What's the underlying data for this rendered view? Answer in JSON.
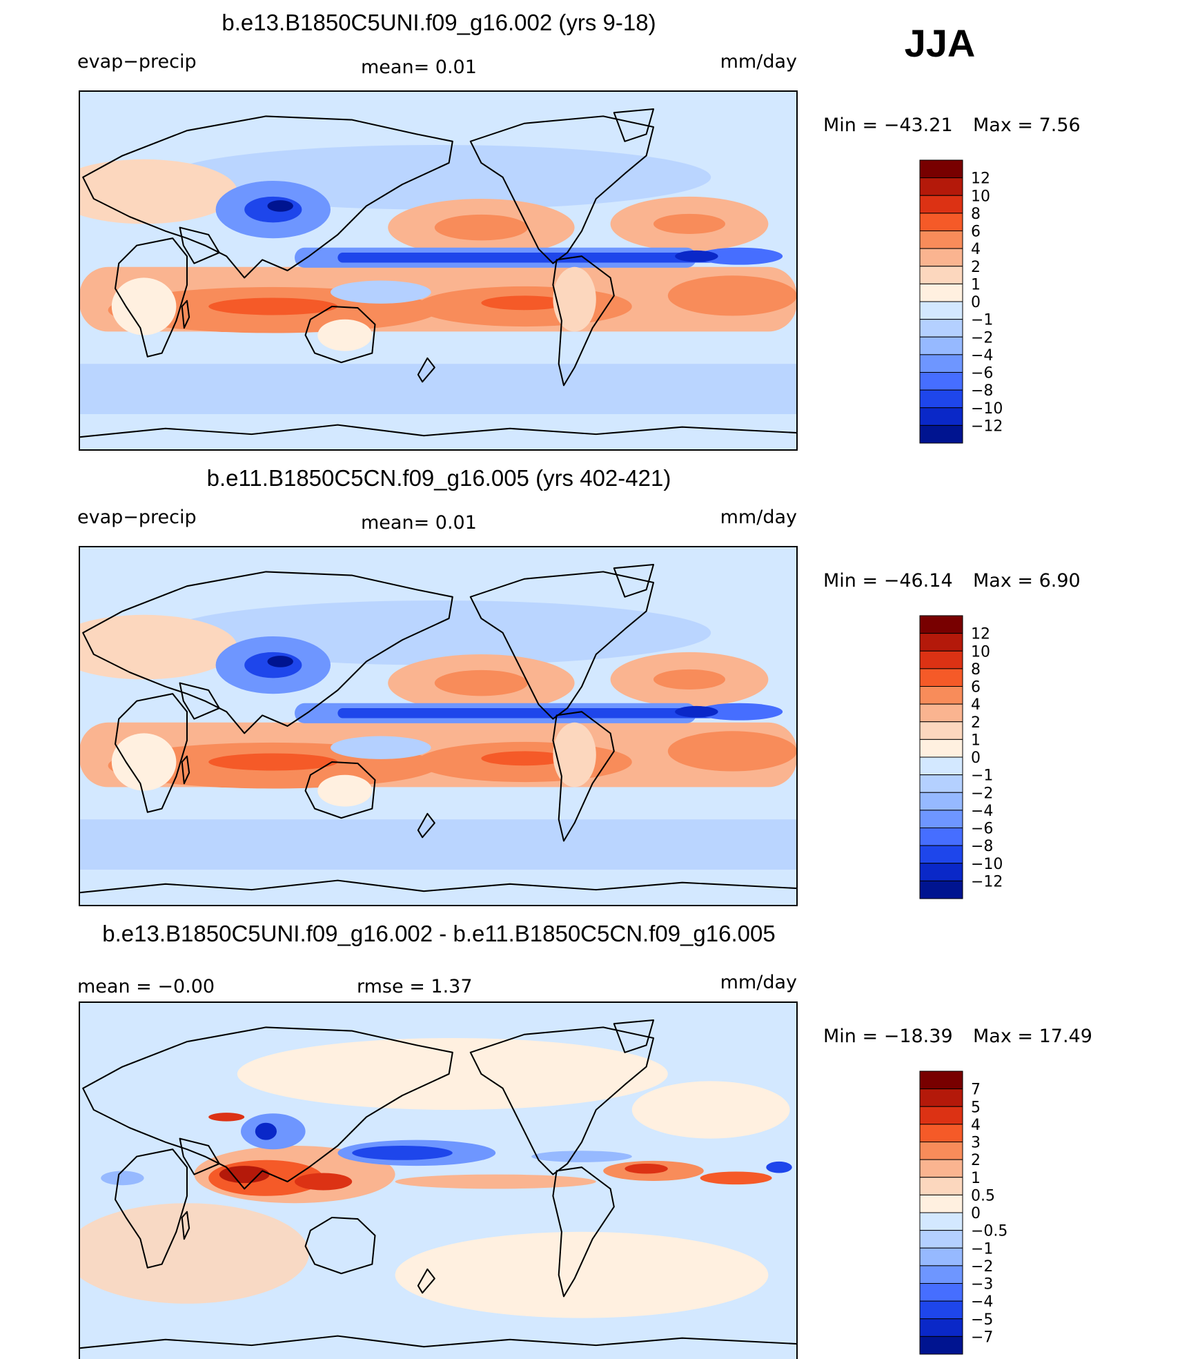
{
  "season": "JJA",
  "chart_data": [
    {
      "type": "heatmap",
      "title": "b.e13.B1850C5UNI.f09_g16.002 (yrs 9-18)",
      "variable": "evap−precip",
      "stat_left": "",
      "stat_mid": "mean=    0.01",
      "units": "mm/day",
      "min_label": "Min  =  −43.21",
      "max_label": "Max  =     7.56",
      "colorbar": {
        "labels": [
          "12",
          "10",
          "8",
          "6",
          "4",
          "2",
          "1",
          "0",
          "−1",
          "−2",
          "−4",
          "−6",
          "−8",
          "−10",
          "−12"
        ],
        "colors": [
          "#780000",
          "#b4190a",
          "#dc3214",
          "#f55a28",
          "#f88c5a",
          "#fab490",
          "#fcd7be",
          "#fff0e0",
          "#d3e8ff",
          "#b4d0ff",
          "#96b9ff",
          "#6e96ff",
          "#466eff",
          "#1e46eb",
          "#0a28c8",
          "#001490"
        ]
      }
    },
    {
      "type": "heatmap",
      "title": "b.e11.B1850C5CN.f09_g16.005 (yrs 402-421)",
      "variable": "evap−precip",
      "stat_left": "",
      "stat_mid": "mean=    0.01",
      "units": "mm/day",
      "min_label": "Min  =  −46.14",
      "max_label": "Max  =     6.90",
      "colorbar": {
        "labels": [
          "12",
          "10",
          "8",
          "6",
          "4",
          "2",
          "1",
          "0",
          "−1",
          "−2",
          "−4",
          "−6",
          "−8",
          "−10",
          "−12"
        ],
        "colors": [
          "#780000",
          "#b4190a",
          "#dc3214",
          "#f55a28",
          "#f88c5a",
          "#fab490",
          "#fcd7be",
          "#fff0e0",
          "#d3e8ff",
          "#b4d0ff",
          "#96b9ff",
          "#6e96ff",
          "#466eff",
          "#1e46eb",
          "#0a28c8",
          "#001490"
        ]
      }
    },
    {
      "type": "heatmap",
      "title": "b.e13.B1850C5UNI.f09_g16.002 - b.e11.B1850C5CN.f09_g16.005",
      "variable": "",
      "stat_left": "mean  =   −0.00",
      "stat_mid": "rmse  =     1.37",
      "units": "mm/day",
      "min_label": "Min  =  −18.39",
      "max_label": "Max  =    17.49",
      "colorbar": {
        "labels": [
          "7",
          "5",
          "4",
          "3",
          "2",
          "1",
          "0.5",
          "0",
          "−0.5",
          "−1",
          "−2",
          "−3",
          "−4",
          "−5",
          "−7"
        ],
        "colors": [
          "#780000",
          "#b4190a",
          "#dc3214",
          "#f55a28",
          "#f88c5a",
          "#fab490",
          "#fcd7be",
          "#fff0e0",
          "#d3e8ff",
          "#b4d0ff",
          "#96b9ff",
          "#6e96ff",
          "#466eff",
          "#1e46eb",
          "#0a28c8",
          "#001490"
        ]
      }
    }
  ]
}
